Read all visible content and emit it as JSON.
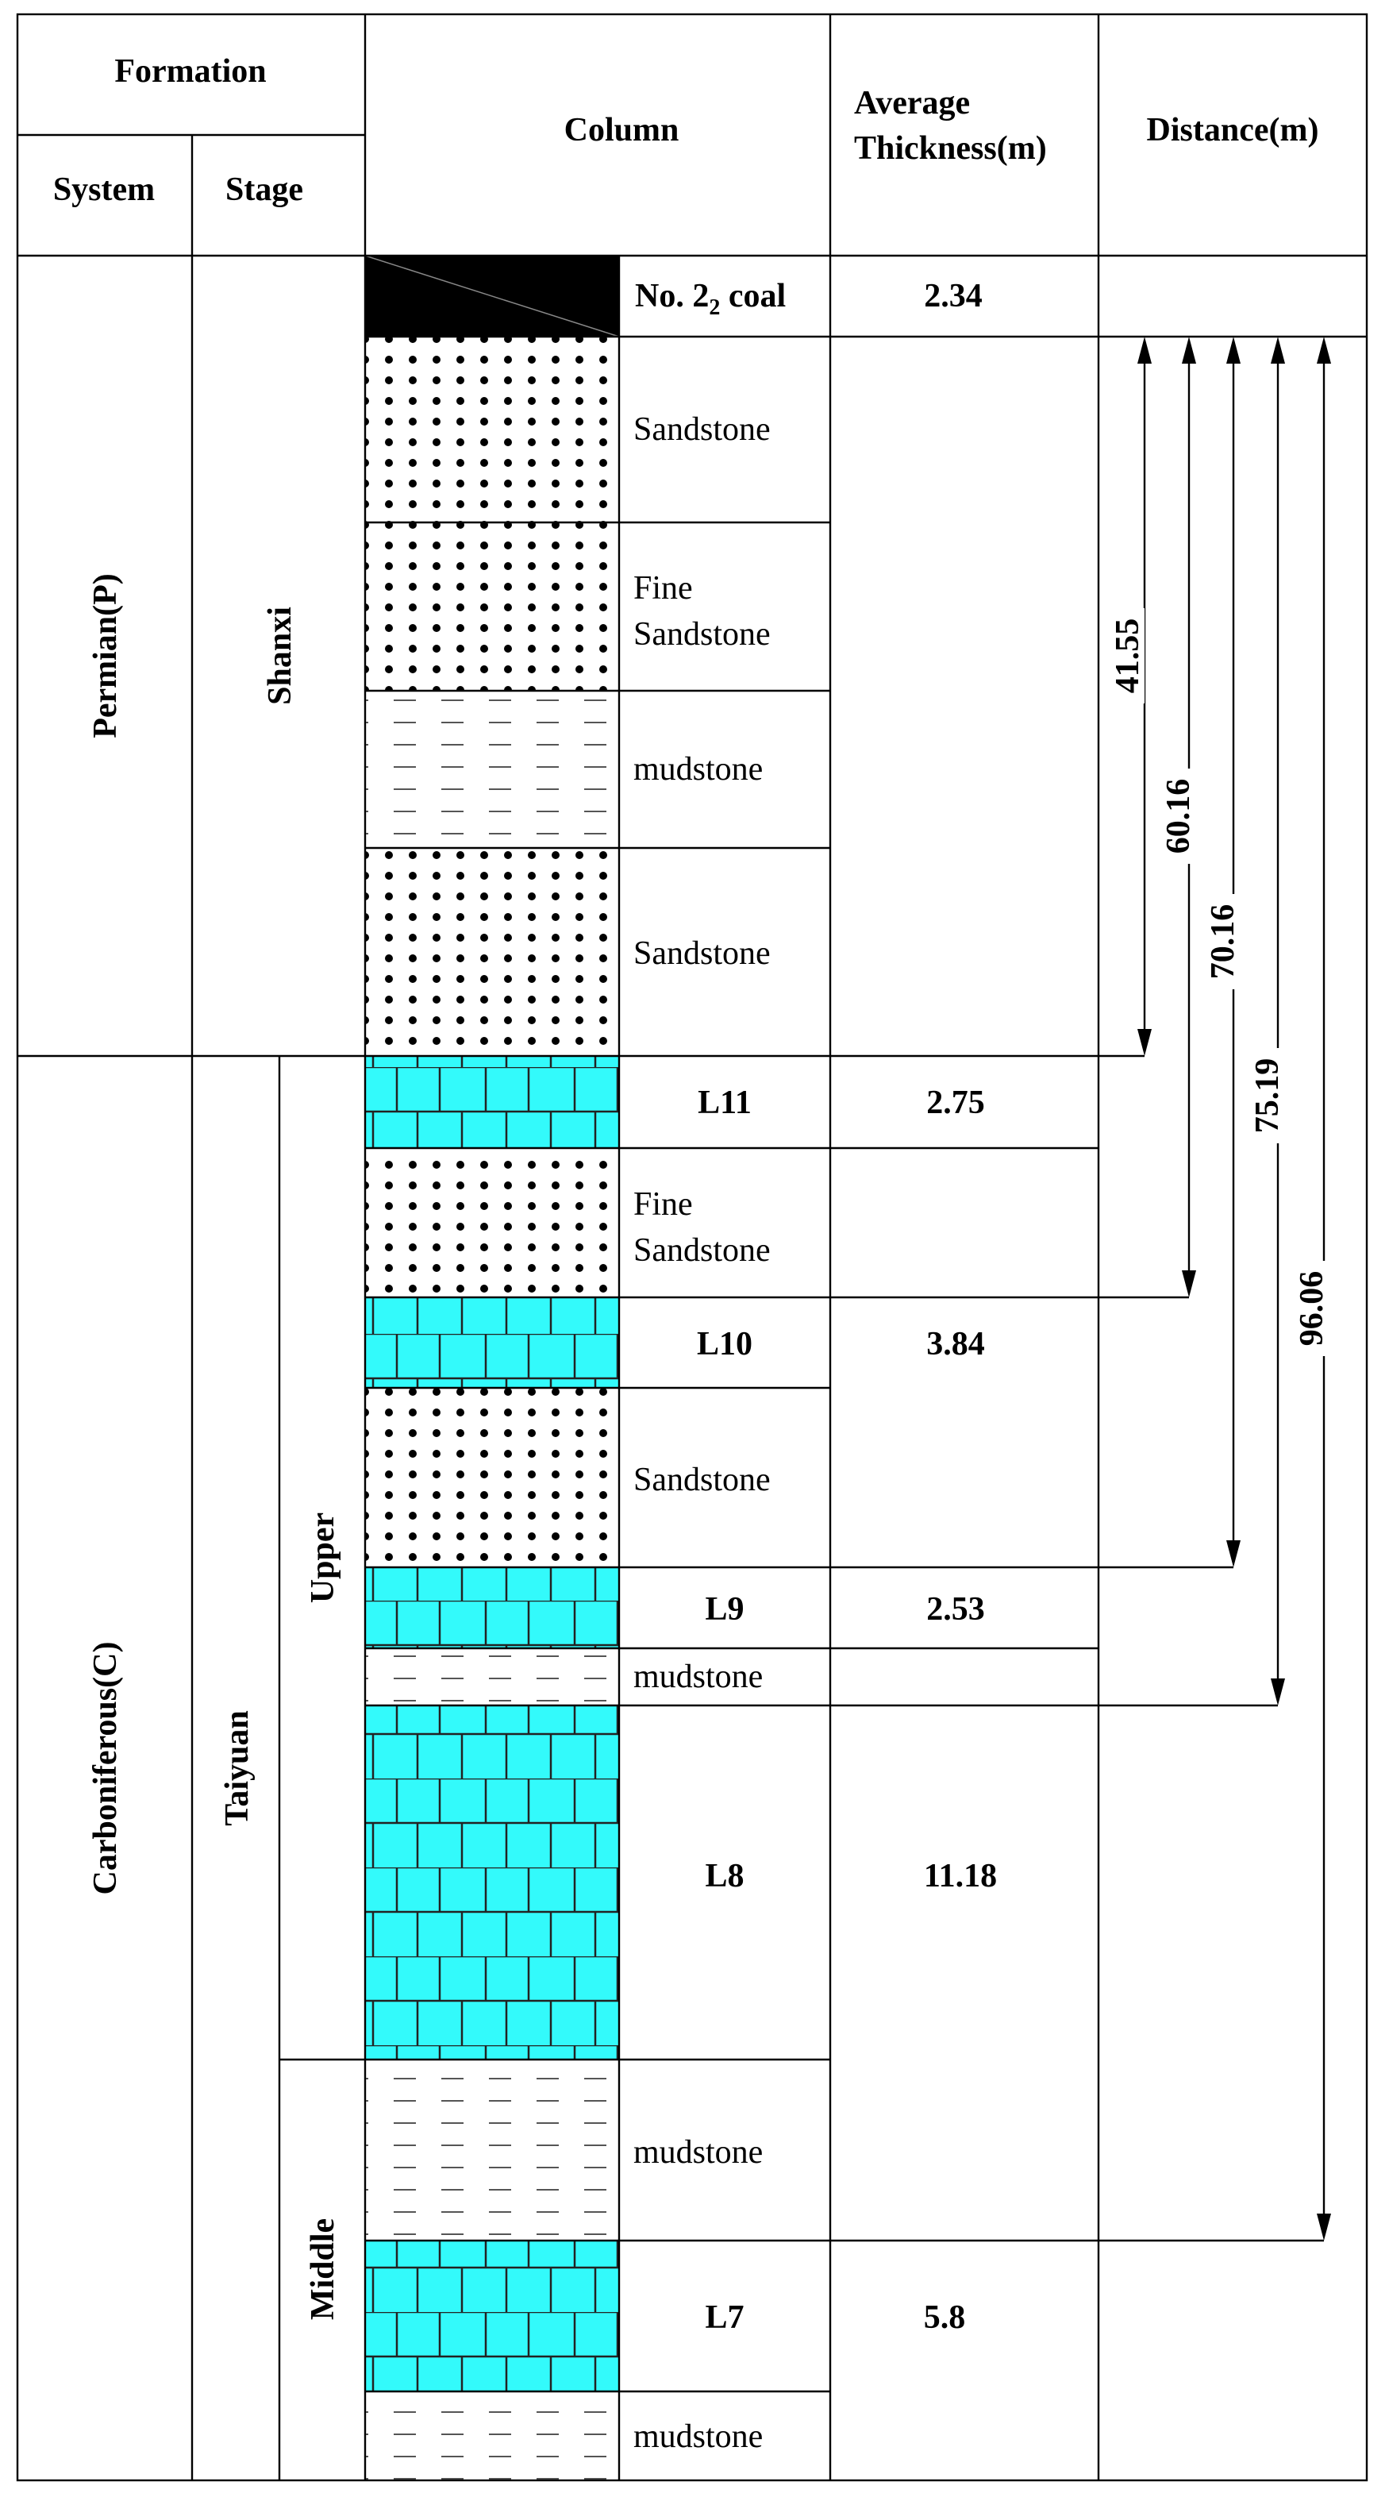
{
  "header": {
    "formation": "Formation",
    "system": "System",
    "stage": "Stage",
    "column": "Column",
    "average_thickness_line1": "Average",
    "average_thickness_line2": "Thickness(m)",
    "distance": "Distance(m)"
  },
  "systems": {
    "permian": "Permian(P)",
    "carboniferous": "Carboniferous(C)"
  },
  "stages": {
    "shanxi": "Shanxi",
    "taiyuan": "Taiyuan"
  },
  "substages": {
    "upper": "Upper",
    "middle": "Middle"
  },
  "layers": {
    "coal": {
      "label_main": "No. 2",
      "label_sub": "2",
      "label_rest": " coal",
      "thickness": "2.34"
    },
    "l1": {
      "line1": "Sandstone"
    },
    "l2": {
      "line1": "Fine",
      "line2": "Sandstone"
    },
    "l3": {
      "line1": "mudstone"
    },
    "l4": {
      "line1": "Sandstone"
    },
    "l5": {
      "line1": "L11",
      "thickness": "2.75"
    },
    "l6": {
      "line1": "Fine",
      "line2": "Sandstone"
    },
    "l7": {
      "line1": "L10",
      "thickness": "3.84"
    },
    "l8": {
      "line1": "Sandstone"
    },
    "l9": {
      "line1": "L9",
      "thickness": "2.53"
    },
    "l10": {
      "line1": "mudstone"
    },
    "l11": {
      "line1": "L8",
      "thickness": "11.18"
    },
    "l12": {
      "line1": "mudstone"
    },
    "l13": {
      "line1": "L7",
      "thickness": "5.8"
    },
    "l14": {
      "line1": "mudstone"
    }
  },
  "distances": {
    "d1": "41.55",
    "d2": "60.16",
    "d3": "70.16",
    "d4": "75.19",
    "d5": "96.06"
  },
  "colors": {
    "limestone": "#33FAFB",
    "coal": "#000000",
    "dash": "#555555"
  }
}
